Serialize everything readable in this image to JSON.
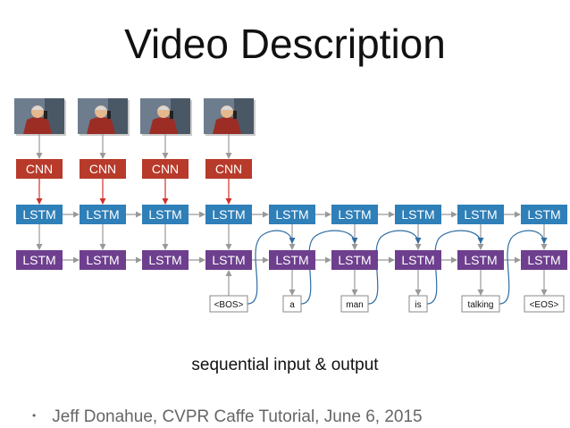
{
  "slide": {
    "title": "Video Description",
    "caption": "sequential input & output",
    "credit": "Jeff Donahue, CVPR Caffe Tutorial, June 6, 2015"
  },
  "diagram": {
    "cnn_label": "CNN",
    "lstm_label": "LSTM",
    "frame_count": 4,
    "columns": 9,
    "words": [
      "<BOS>",
      "a",
      "man",
      "is",
      "talking",
      "<EOS>"
    ],
    "colors": {
      "cnn": "#b83a2a",
      "lstm_top": "#2f7fb8",
      "lstm_bottom": "#6e3f8e",
      "red_arrow": "#d0302a",
      "grey_arrow": "#999999",
      "feedback": "#2e6da4",
      "frame_bg": "#6d7d8e",
      "frame_person": "#9b2d25",
      "frame_face": "#e6b88e"
    }
  }
}
